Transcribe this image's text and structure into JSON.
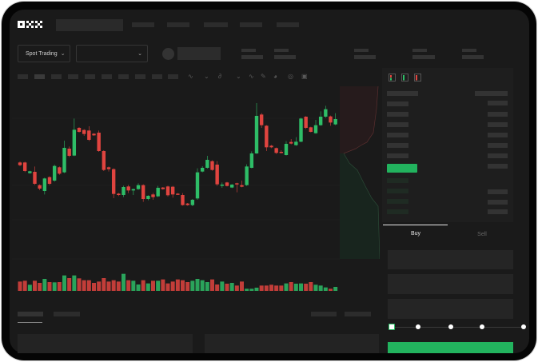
{
  "header": {
    "logo": "OKX",
    "nav_items": 5
  },
  "market": {
    "mode_selector": "Spot Trading",
    "pair_selector": ""
  },
  "trade_form": {
    "tabs": [
      {
        "label": "Buy",
        "active": true
      },
      {
        "label": "Sell",
        "active": false
      }
    ],
    "submit_color": "#22b35e",
    "slider_steps": 5,
    "slider_value_percent": 0
  },
  "orderbook": {
    "icons": [
      "orderbook-both-icon",
      "orderbook-buy-icon",
      "orderbook-sell-icon"
    ],
    "highlight_color": "#22b35e"
  },
  "colors": {
    "up": "#2ebd67",
    "down": "#e0443f",
    "background": "#1a1a1a",
    "accent": "#22b35e"
  },
  "chart_data": {
    "type": "candlestick",
    "title": "",
    "candles_ohlc": [
      [
        500,
        504,
        486,
        490
      ],
      [
        500,
        503,
        464,
        468
      ],
      [
        460,
        469,
        458,
        467
      ],
      [
        465,
        485,
        416,
        420
      ],
      [
        415,
        418,
        396,
        402
      ],
      [
        393,
        443,
        380,
        440
      ],
      [
        445,
        448,
        415,
        420
      ],
      [
        432,
        492,
        428,
        487
      ],
      [
        482,
        485,
        454,
        458
      ],
      [
        463,
        582,
        460,
        555
      ],
      [
        552,
        560,
        520,
        525
      ],
      [
        526,
        665,
        524,
        623
      ],
      [
        630,
        633,
        612,
        615
      ],
      [
        622,
        625,
        600,
        607
      ],
      [
        620,
        636,
        580,
        585
      ],
      [
        608,
        610,
        600,
        602
      ],
      [
        612,
        620,
        540,
        543
      ],
      [
        543,
        546,
        468,
        472
      ],
      [
        482,
        485,
        466,
        475
      ],
      [
        475,
        478,
        366,
        382
      ],
      [
        383,
        386,
        374,
        378
      ],
      [
        378,
        413,
        370,
        408
      ],
      [
        410,
        416,
        385,
        395
      ],
      [
        395,
        402,
        378,
        400
      ],
      [
        400,
        422,
        397,
        415
      ],
      [
        415,
        418,
        352,
        363
      ],
      [
        363,
        377,
        358,
        375
      ],
      [
        380,
        386,
        360,
        370
      ],
      [
        373,
        412,
        370,
        405
      ],
      [
        406,
        408,
        398,
        400
      ],
      [
        410,
        413,
        372,
        377
      ],
      [
        409,
        412,
        368,
        380
      ],
      [
        383,
        385,
        378,
        380
      ],
      [
        378,
        385,
        338,
        340
      ],
      [
        346,
        348,
        338,
        340
      ],
      [
        340,
        363,
        336,
        360
      ],
      [
        365,
        478,
        360,
        463
      ],
      [
        466,
        486,
        463,
        480
      ],
      [
        480,
        525,
        477,
        510
      ],
      [
        505,
        508,
        469,
        472
      ],
      [
        492,
        505,
        412,
        418
      ],
      [
        413,
        425,
        405,
        417
      ],
      [
        425,
        427,
        410,
        412
      ],
      [
        406,
        419,
        404,
        417
      ],
      [
        422,
        424,
        388,
        418
      ],
      [
        415,
        432,
        407,
        409
      ],
      [
        415,
        493,
        412,
        485
      ],
      [
        480,
        542,
        478,
        534
      ],
      [
        534,
        723,
        532,
        675
      ],
      [
        680,
        686,
        630,
        640
      ],
      [
        638,
        640,
        543,
        557
      ],
      [
        563,
        566,
        554,
        557
      ],
      [
        554,
        556,
        532,
        536
      ],
      [
        540,
        546,
        534,
        536
      ],
      [
        528,
        580,
        526,
        570
      ],
      [
        577,
        588,
        568,
        571
      ],
      [
        565,
        595,
        563,
        578
      ],
      [
        578,
        668,
        576,
        665
      ],
      [
        672,
        674,
        626,
        630
      ],
      [
        632,
        634,
        613,
        615
      ],
      [
        610,
        660,
        608,
        640
      ],
      [
        640,
        692,
        638,
        672
      ],
      [
        672,
        713,
        668,
        700
      ],
      [
        673,
        676,
        638,
        650
      ],
      [
        643,
        685,
        640,
        663
      ]
    ],
    "volumes": [
      35,
      38,
      23,
      38,
      30,
      45,
      33,
      32,
      33,
      58,
      48,
      58,
      47,
      40,
      40,
      30,
      35,
      48,
      35,
      40,
      35,
      64,
      40,
      38,
      24,
      40,
      28,
      38,
      38,
      43,
      28,
      35,
      43,
      40,
      33,
      38,
      45,
      40,
      33,
      43,
      24,
      35,
      27,
      30,
      20,
      35,
      8,
      8,
      12,
      20,
      20,
      23,
      20,
      20,
      28,
      33,
      27,
      28,
      27,
      33,
      23,
      20,
      13,
      8,
      15
    ],
    "grid": true
  }
}
